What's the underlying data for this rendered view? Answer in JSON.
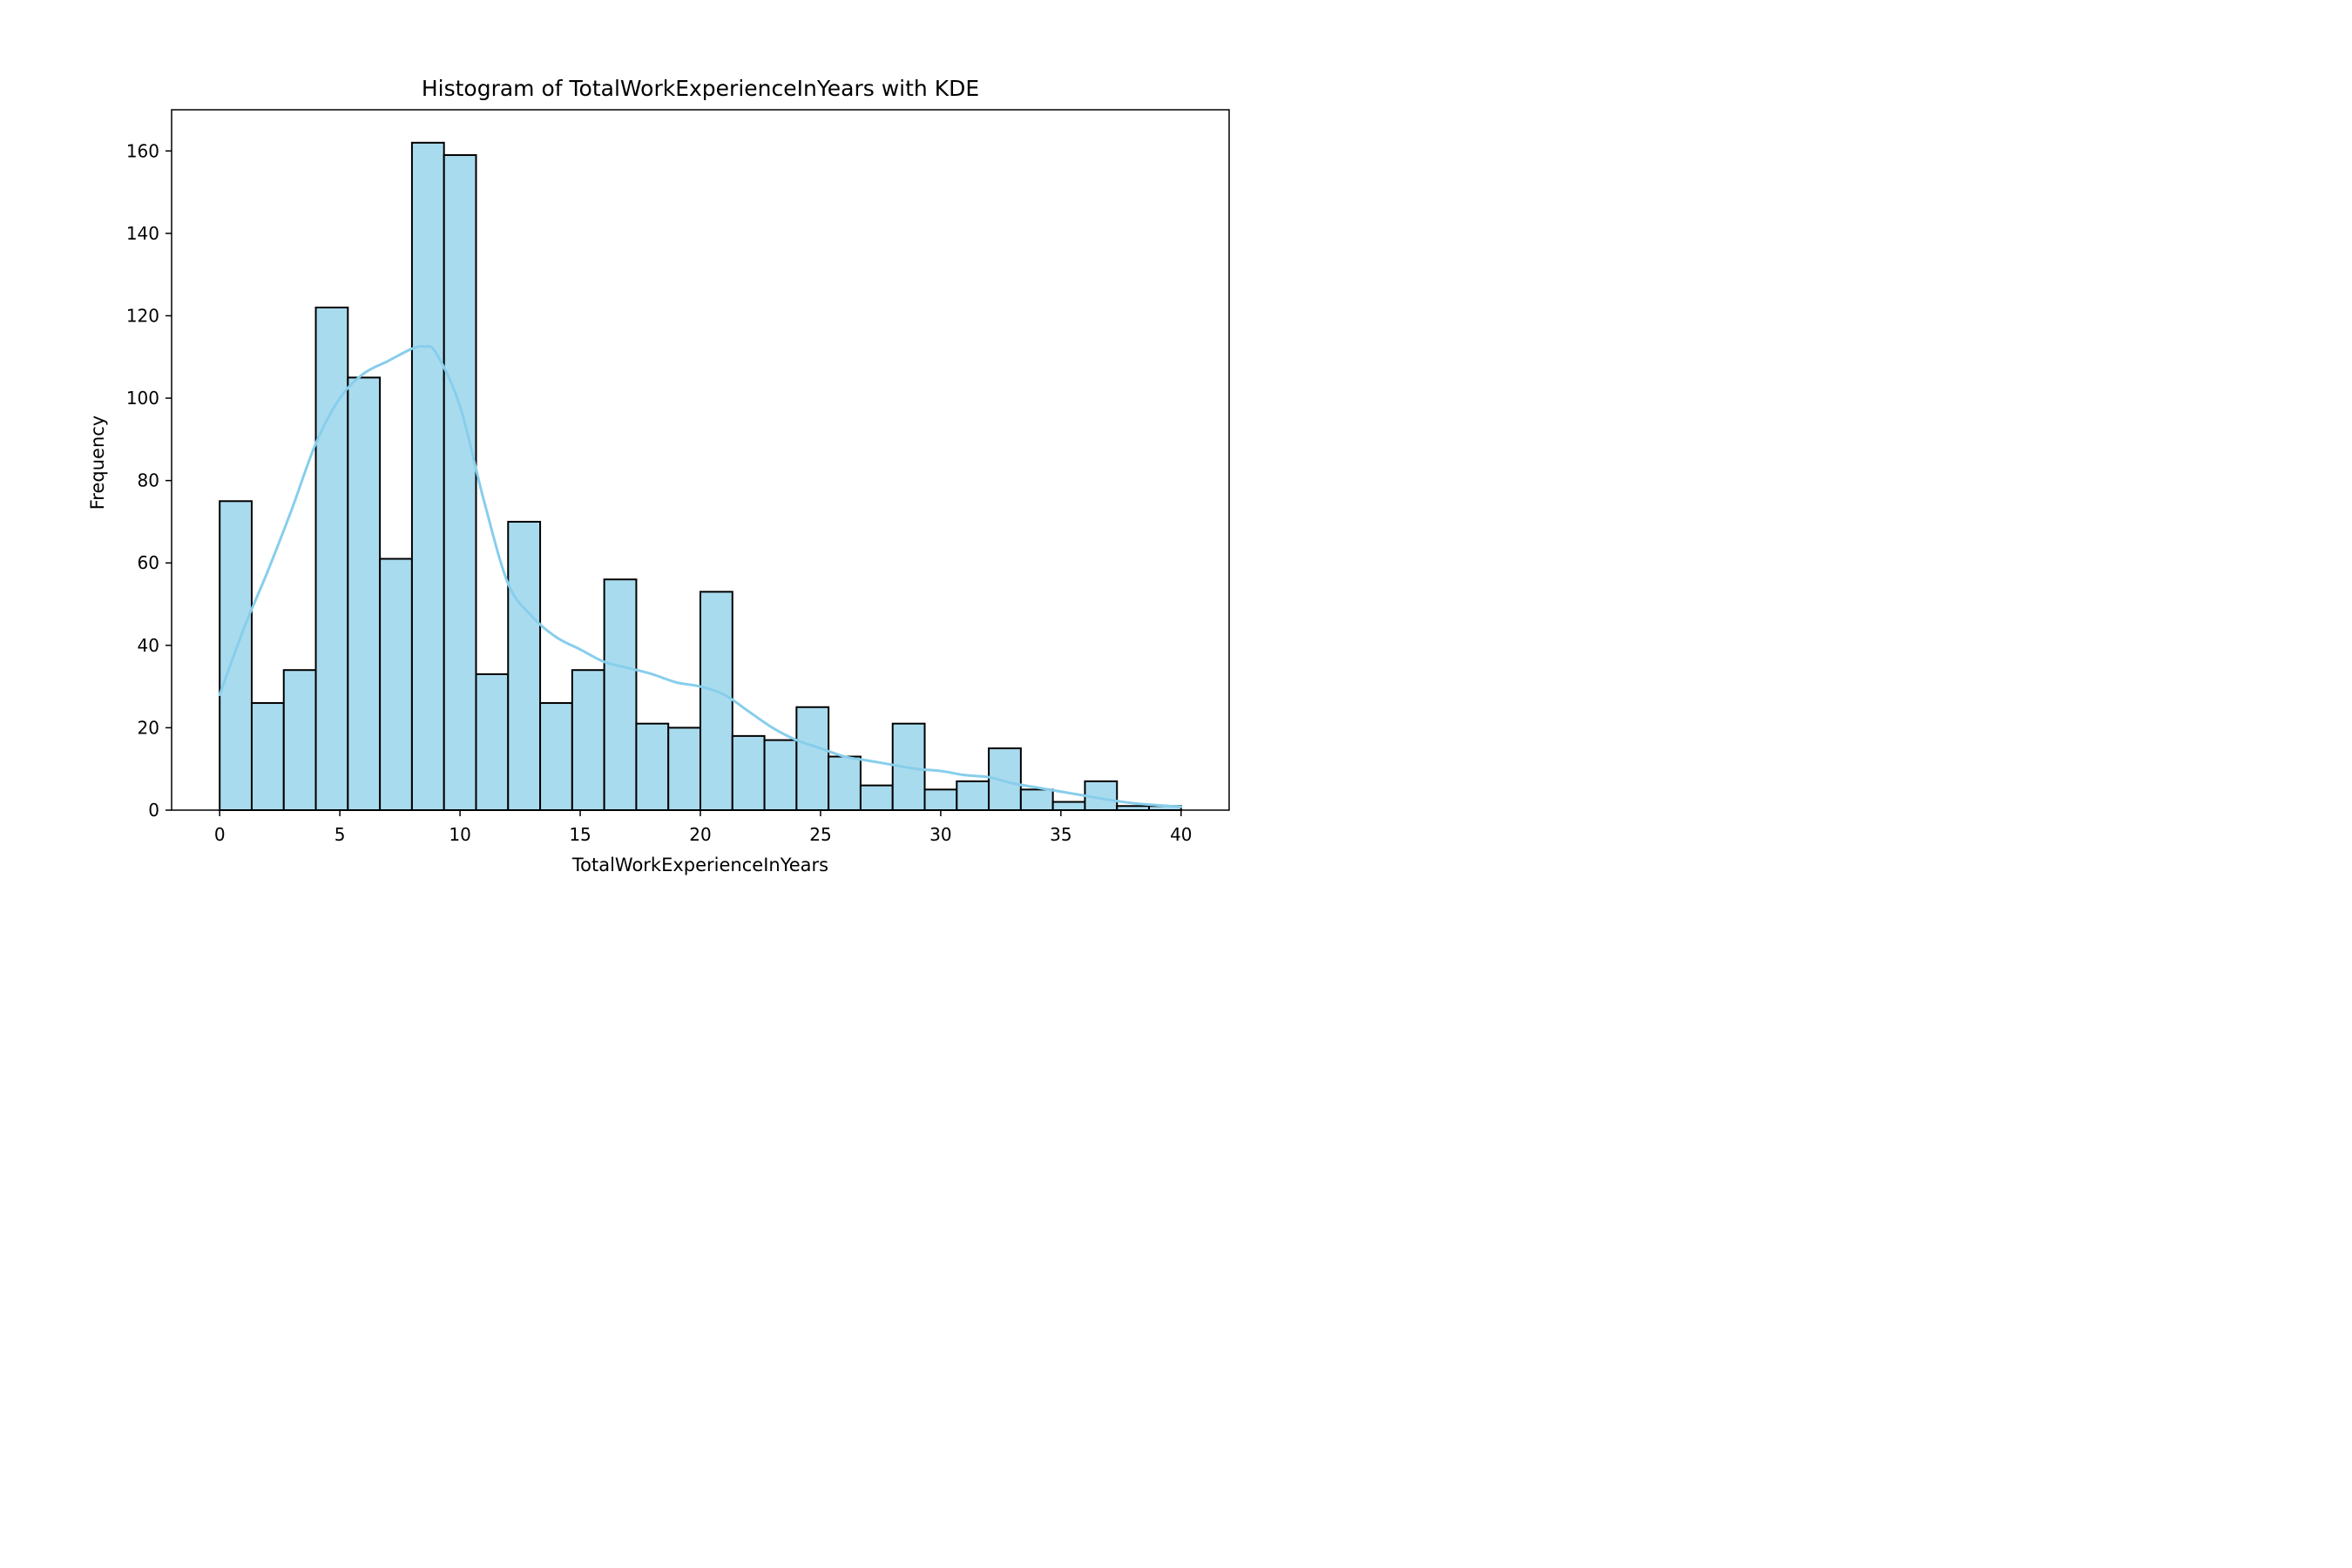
{
  "chart_data": {
    "type": "bar",
    "title": "Histogram of TotalWorkExperienceInYears with KDE",
    "xlabel": "TotalWorkExperienceInYears",
    "ylabel": "Frequency",
    "xlim": [
      -2,
      42
    ],
    "ylim": [
      0,
      170
    ],
    "xticks": [
      0,
      5,
      10,
      15,
      20,
      25,
      30,
      35,
      40
    ],
    "yticks": [
      0,
      20,
      40,
      60,
      80,
      100,
      120,
      140,
      160
    ],
    "grid": false,
    "bins": {
      "start": 0,
      "end": 40,
      "counts": [
        75,
        26,
        34,
        122,
        105,
        61,
        162,
        159,
        33,
        70,
        26,
        34,
        56,
        21,
        20,
        53,
        18,
        17,
        25,
        13,
        6,
        21,
        5,
        7,
        15,
        5,
        2,
        7,
        1,
        1
      ]
    },
    "kde": {
      "x": [
        0,
        1,
        2,
        3,
        4,
        5,
        6,
        7,
        8,
        8.5,
        9,
        10,
        11,
        12,
        13,
        14,
        15,
        16,
        17,
        18,
        19,
        20,
        21,
        22,
        23,
        24,
        25,
        26,
        27,
        28,
        29,
        30,
        31,
        32,
        33,
        34,
        35,
        36,
        37,
        38,
        39,
        40
      ],
      "y": [
        28,
        44,
        58,
        73,
        89,
        100,
        106,
        109,
        112,
        112.5,
        111,
        98,
        75,
        55,
        47,
        42,
        39,
        36,
        34.5,
        33,
        31,
        30,
        28,
        24,
        20,
        17,
        15,
        13,
        12,
        11,
        10,
        9.5,
        8.5,
        8,
        6.5,
        5.5,
        4.5,
        3.5,
        2.5,
        1.7,
        1.2,
        0.8
      ]
    },
    "colors": {
      "bar_fill": "#a9dbee",
      "bar_edge": "#000000",
      "kde_line": "#87ceeb"
    }
  }
}
